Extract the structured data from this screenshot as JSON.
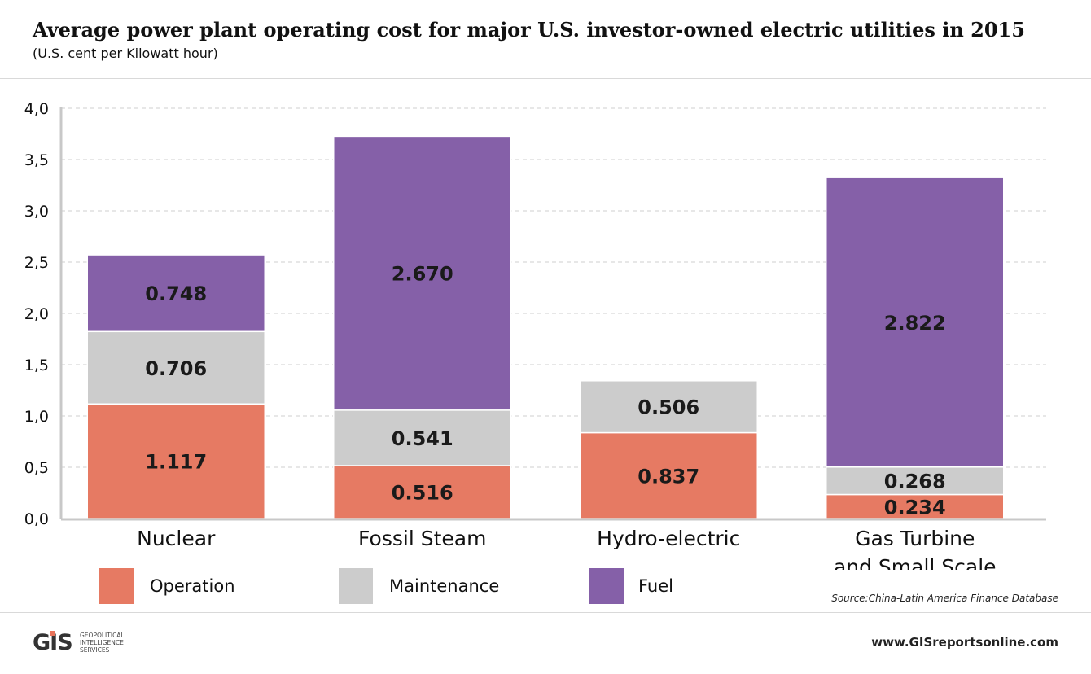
{
  "header": {
    "title": "Average power plant operating cost for major U.S. investor-owned electric utilities in 2015",
    "subtitle": "(U.S. cent per Kilowatt hour)"
  },
  "chart_data": {
    "type": "bar",
    "stacked": true,
    "categories": [
      [
        "Nuclear"
      ],
      [
        "Fossil Steam"
      ],
      [
        "Hydro-electric"
      ],
      [
        "Gas Turbine",
        "and Small Scale"
      ]
    ],
    "series": [
      {
        "name": "Operation",
        "color": "#e67a63",
        "values": [
          1.117,
          0.516,
          0.837,
          0.234
        ],
        "labels": [
          "1.117",
          "0.516",
          "0.837",
          "0.234"
        ]
      },
      {
        "name": "Maintenance",
        "color": "#cccccc",
        "values": [
          0.706,
          0.541,
          0.506,
          0.268
        ],
        "labels": [
          "0.706",
          "0.541",
          "0.506",
          "0.268"
        ]
      },
      {
        "name": "Fuel",
        "color": "#8560a8",
        "values": [
          0.748,
          2.67,
          null,
          2.822
        ],
        "labels": [
          "0.748",
          "2.670",
          "",
          "2.822"
        ]
      }
    ],
    "ylim": [
      0,
      4
    ],
    "yticks": [
      "0,0",
      "0,5",
      "1,0",
      "1,5",
      "2,0",
      "2,5",
      "3,0",
      "3,5",
      "4,0"
    ],
    "grid": true,
    "legend_position": "bottom"
  },
  "legend": [
    {
      "label": "Operation",
      "color": "#e67a63"
    },
    {
      "label": "Maintenance",
      "color": "#cccccc"
    },
    {
      "label": "Fuel",
      "color": "#8560a8"
    }
  ],
  "footer": {
    "source": "Source:China-Latin America Finance Database",
    "logo_mark": "GIS",
    "logo_lines": [
      "GEOPOLITICAL",
      "INTELLIGENCE",
      "SERVICES"
    ],
    "url": "www.GISreportsonline.com"
  }
}
